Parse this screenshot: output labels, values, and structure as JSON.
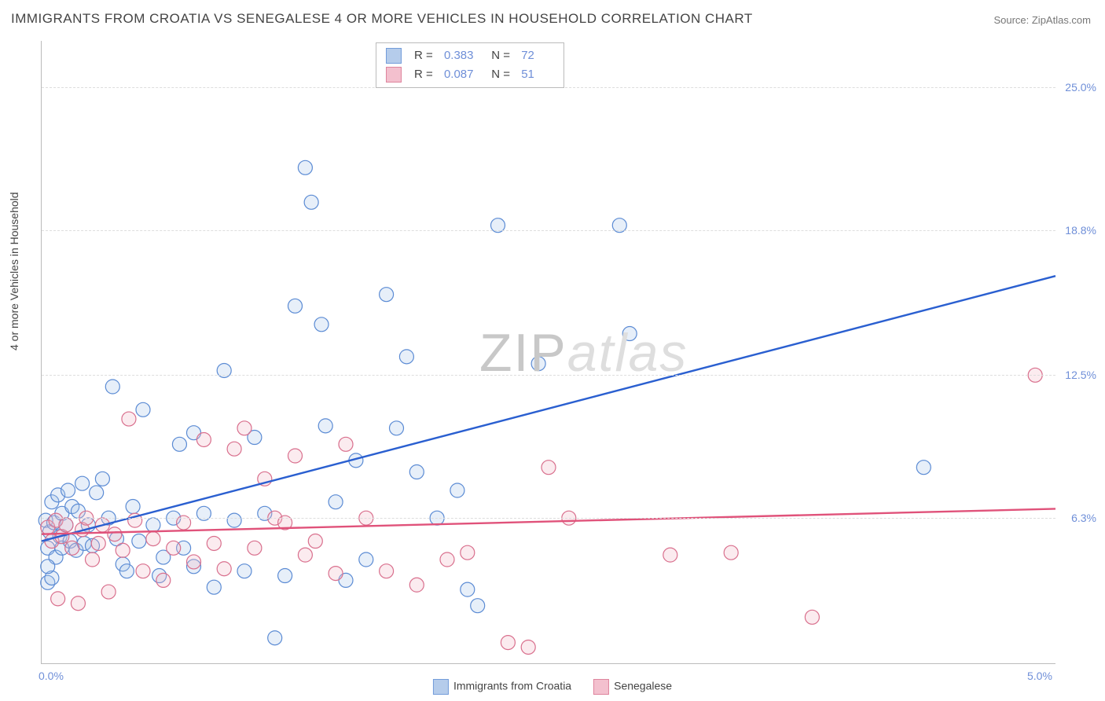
{
  "title": "IMMIGRANTS FROM CROATIA VS SENEGALESE 4 OR MORE VEHICLES IN HOUSEHOLD CORRELATION CHART",
  "source_label": "Source: ",
  "source_value": "ZipAtlas.com",
  "watermark_a": "ZIP",
  "watermark_b": "atlas",
  "y_axis_title": "4 or more Vehicles in Household",
  "chart": {
    "type": "scatter-with-regression",
    "xlim": [
      0.0,
      5.0
    ],
    "ylim": [
      0.0,
      27.0
    ],
    "x_ticks": [
      {
        "v": 0.0,
        "label": "0.0%"
      },
      {
        "v": 5.0,
        "label": "5.0%"
      }
    ],
    "y_ticks": [
      {
        "v": 6.3,
        "label": "6.3%"
      },
      {
        "v": 12.5,
        "label": "12.5%"
      },
      {
        "v": 18.8,
        "label": "18.8%"
      },
      {
        "v": 25.0,
        "label": "25.0%"
      }
    ],
    "grid_color": "#dddddd",
    "background_color": "#ffffff",
    "axis_color": "#bbbbbb",
    "tick_label_color": "#6f8fd8",
    "marker_radius": 9,
    "marker_stroke_width": 1.2,
    "marker_fill_opacity": 0.28,
    "regression_line_width": 2.4,
    "series": [
      {
        "name": "Immigrants from Croatia",
        "color_stroke": "#5b8bd4",
        "color_fill": "#a9c4e8",
        "line_color": "#2a5fd0",
        "R": "0.383",
        "N": "72",
        "regression": {
          "x1": 0.0,
          "y1": 5.3,
          "x2": 5.0,
          "y2": 16.8
        },
        "points": [
          [
            0.02,
            6.2
          ],
          [
            0.03,
            5.0
          ],
          [
            0.04,
            5.7
          ],
          [
            0.05,
            7.0
          ],
          [
            0.06,
            6.1
          ],
          [
            0.07,
            4.6
          ],
          [
            0.08,
            7.3
          ],
          [
            0.09,
            5.5
          ],
          [
            0.1,
            6.5
          ],
          [
            0.1,
            5.0
          ],
          [
            0.12,
            6.0
          ],
          [
            0.13,
            7.5
          ],
          [
            0.14,
            5.3
          ],
          [
            0.15,
            6.8
          ],
          [
            0.17,
            4.9
          ],
          [
            0.18,
            6.6
          ],
          [
            0.2,
            7.8
          ],
          [
            0.21,
            5.2
          ],
          [
            0.23,
            6.0
          ],
          [
            0.03,
            3.5
          ],
          [
            0.05,
            3.7
          ],
          [
            0.25,
            5.1
          ],
          [
            0.27,
            7.4
          ],
          [
            0.3,
            8.0
          ],
          [
            0.33,
            6.3
          ],
          [
            0.35,
            12.0
          ],
          [
            0.37,
            5.4
          ],
          [
            0.4,
            4.3
          ],
          [
            0.42,
            4.0
          ],
          [
            0.45,
            6.8
          ],
          [
            0.48,
            5.3
          ],
          [
            0.5,
            11.0
          ],
          [
            0.55,
            6.0
          ],
          [
            0.58,
            3.8
          ],
          [
            0.6,
            4.6
          ],
          [
            0.65,
            6.3
          ],
          [
            0.68,
            9.5
          ],
          [
            0.7,
            5.0
          ],
          [
            0.75,
            10.0
          ],
          [
            0.75,
            4.2
          ],
          [
            0.8,
            6.5
          ],
          [
            0.85,
            3.3
          ],
          [
            0.9,
            12.7
          ],
          [
            0.95,
            6.2
          ],
          [
            1.0,
            4.0
          ],
          [
            1.05,
            9.8
          ],
          [
            1.1,
            6.5
          ],
          [
            1.15,
            1.1
          ],
          [
            1.2,
            3.8
          ],
          [
            1.25,
            15.5
          ],
          [
            1.3,
            21.5
          ],
          [
            1.33,
            20.0
          ],
          [
            1.38,
            14.7
          ],
          [
            1.4,
            10.3
          ],
          [
            1.45,
            7.0
          ],
          [
            1.5,
            3.6
          ],
          [
            1.55,
            8.8
          ],
          [
            1.6,
            4.5
          ],
          [
            1.7,
            16.0
          ],
          [
            1.75,
            10.2
          ],
          [
            1.8,
            13.3
          ],
          [
            1.85,
            8.3
          ],
          [
            1.95,
            6.3
          ],
          [
            2.05,
            7.5
          ],
          [
            2.1,
            3.2
          ],
          [
            2.15,
            2.5
          ],
          [
            2.25,
            19.0
          ],
          [
            2.45,
            13.0
          ],
          [
            2.85,
            19.0
          ],
          [
            2.9,
            14.3
          ],
          [
            4.35,
            8.5
          ],
          [
            0.03,
            4.2
          ]
        ]
      },
      {
        "name": "Senegalese",
        "color_stroke": "#d96f8d",
        "color_fill": "#f2b6c6",
        "line_color": "#e0527a",
        "R": "0.087",
        "N": "51",
        "regression": {
          "x1": 0.0,
          "y1": 5.6,
          "x2": 5.0,
          "y2": 6.7
        },
        "points": [
          [
            0.03,
            5.9
          ],
          [
            0.05,
            5.3
          ],
          [
            0.07,
            6.2
          ],
          [
            0.08,
            2.8
          ],
          [
            0.1,
            5.5
          ],
          [
            0.12,
            6.0
          ],
          [
            0.15,
            5.0
          ],
          [
            0.18,
            2.6
          ],
          [
            0.2,
            5.8
          ],
          [
            0.22,
            6.3
          ],
          [
            0.25,
            4.5
          ],
          [
            0.28,
            5.2
          ],
          [
            0.3,
            6.0
          ],
          [
            0.33,
            3.1
          ],
          [
            0.36,
            5.6
          ],
          [
            0.4,
            4.9
          ],
          [
            0.43,
            10.6
          ],
          [
            0.46,
            6.2
          ],
          [
            0.5,
            4.0
          ],
          [
            0.55,
            5.4
          ],
          [
            0.6,
            3.6
          ],
          [
            0.65,
            5.0
          ],
          [
            0.7,
            6.1
          ],
          [
            0.75,
            4.4
          ],
          [
            0.8,
            9.7
          ],
          [
            0.85,
            5.2
          ],
          [
            0.9,
            4.1
          ],
          [
            0.95,
            9.3
          ],
          [
            1.0,
            10.2
          ],
          [
            1.05,
            5.0
          ],
          [
            1.1,
            8.0
          ],
          [
            1.15,
            6.3
          ],
          [
            1.25,
            9.0
          ],
          [
            1.3,
            4.7
          ],
          [
            1.35,
            5.3
          ],
          [
            1.45,
            3.9
          ],
          [
            1.5,
            9.5
          ],
          [
            1.6,
            6.3
          ],
          [
            1.7,
            4.0
          ],
          [
            1.85,
            3.4
          ],
          [
            2.0,
            4.5
          ],
          [
            2.1,
            4.8
          ],
          [
            2.3,
            0.9
          ],
          [
            2.4,
            0.7
          ],
          [
            2.5,
            8.5
          ],
          [
            2.6,
            6.3
          ],
          [
            3.1,
            4.7
          ],
          [
            3.4,
            4.8
          ],
          [
            3.8,
            2.0
          ],
          [
            4.9,
            12.5
          ],
          [
            1.2,
            6.1
          ]
        ]
      }
    ]
  },
  "bottom_legend": [
    {
      "label": "Immigrants from Croatia",
      "fill": "#a9c4e8",
      "stroke": "#5b8bd4"
    },
    {
      "label": "Senegalese",
      "fill": "#f2b6c6",
      "stroke": "#d96f8d"
    }
  ]
}
